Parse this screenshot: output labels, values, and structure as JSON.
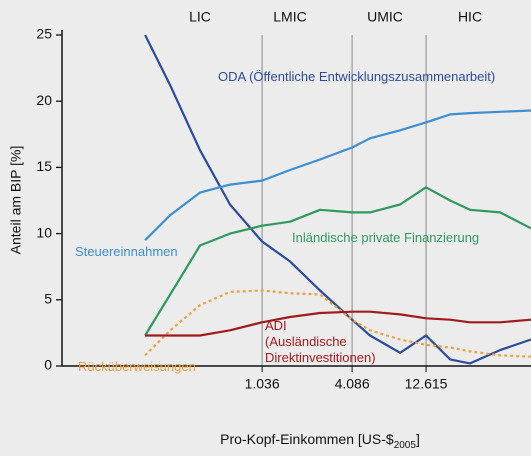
{
  "chart_data": {
    "type": "line",
    "y_label": "Anteil am BIP [%]",
    "x_label": {
      "text": "Pro-Kopf-Einkommen [US-$",
      "subscript": "2005",
      "suffix": "]"
    },
    "tiers": [
      "LIC",
      "LMIC",
      "UMIC",
      "HIC"
    ],
    "log_x": true,
    "xlim": [
      49,
      62500
    ],
    "xticks": [
      {
        "value": 1036,
        "label": "1.036"
      },
      {
        "value": 4086,
        "label": "4.086"
      },
      {
        "value": 12615,
        "label": "12.615"
      }
    ],
    "ylim": [
      0,
      25
    ],
    "yticks": [
      0,
      5,
      10,
      15,
      20,
      25
    ],
    "x": [
      174,
      255,
      402,
      635,
      1036,
      1585,
      2506,
      4086,
      5370,
      8490,
      12615,
      18200,
      24660,
      39000,
      62500
    ],
    "series": [
      {
        "name": "ODA (Öffentliche Entwicklungszusammenarbeit)",
        "color": "#2b4b9b",
        "values": [
          25,
          21.2,
          16.3,
          12.2,
          9.4,
          7.9,
          5.7,
          3.5,
          2.3,
          1.0,
          2.3,
          0.5,
          0.2,
          1.2,
          2.0
        ]
      },
      {
        "name": "Steuereinnahmen",
        "color": "#3d8fd1",
        "values": [
          9.5,
          11.4,
          13.1,
          13.7,
          14.0,
          14.8,
          15.6,
          16.5,
          17.2,
          17.8,
          18.4,
          19.0,
          19.1,
          19.2,
          19.3
        ]
      },
      {
        "name": "Inländische private Finanzierung",
        "color": "#2e9a5e",
        "values": [
          2.3,
          5.4,
          9.1,
          10.0,
          10.6,
          10.9,
          11.8,
          11.6,
          11.6,
          12.2,
          13.5,
          12.5,
          11.8,
          11.6,
          10.4
        ]
      },
      {
        "name": "Rücküberweisungen",
        "color": "#f0a040",
        "dash": true,
        "values": [
          0.8,
          2.7,
          4.6,
          5.6,
          5.7,
          5.5,
          5.4,
          3.5,
          2.7,
          2.0,
          1.6,
          1.4,
          1.1,
          0.8,
          0.7
        ]
      },
      {
        "name": "ADI\n(Ausländische\nDirektinvestitionen)",
        "color": "#a01c1c",
        "values": [
          2.3,
          2.3,
          2.3,
          2.7,
          3.3,
          3.7,
          4.0,
          4.1,
          4.1,
          3.9,
          3.6,
          3.5,
          3.3,
          3.3,
          3.5
        ]
      }
    ]
  }
}
